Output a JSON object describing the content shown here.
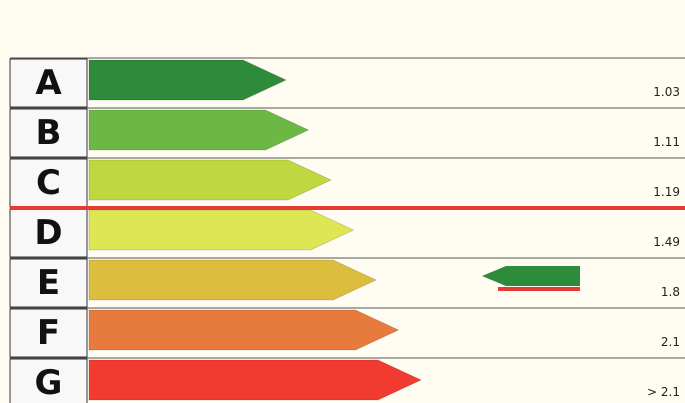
{
  "chart_data": {
    "type": "bar",
    "title": "",
    "categories": [
      "A",
      "B",
      "C",
      "D",
      "E",
      "F",
      "G"
    ],
    "colors": [
      "#2e8b3a",
      "#6cb844",
      "#bfd840",
      "#dfe653",
      "#ddbd3d",
      "#e67b3d",
      "#f23b30"
    ],
    "thresholds": [
      "1.03",
      "1.11",
      "1.19",
      "1.49",
      "1.8",
      "2.1",
      "> 2.1"
    ],
    "reference_line": {
      "between": [
        "C",
        "D"
      ],
      "color": "#e43b36"
    },
    "indicator": {
      "row": "E",
      "color": "#2e8b3a",
      "underline_color": "#e43b36"
    }
  }
}
